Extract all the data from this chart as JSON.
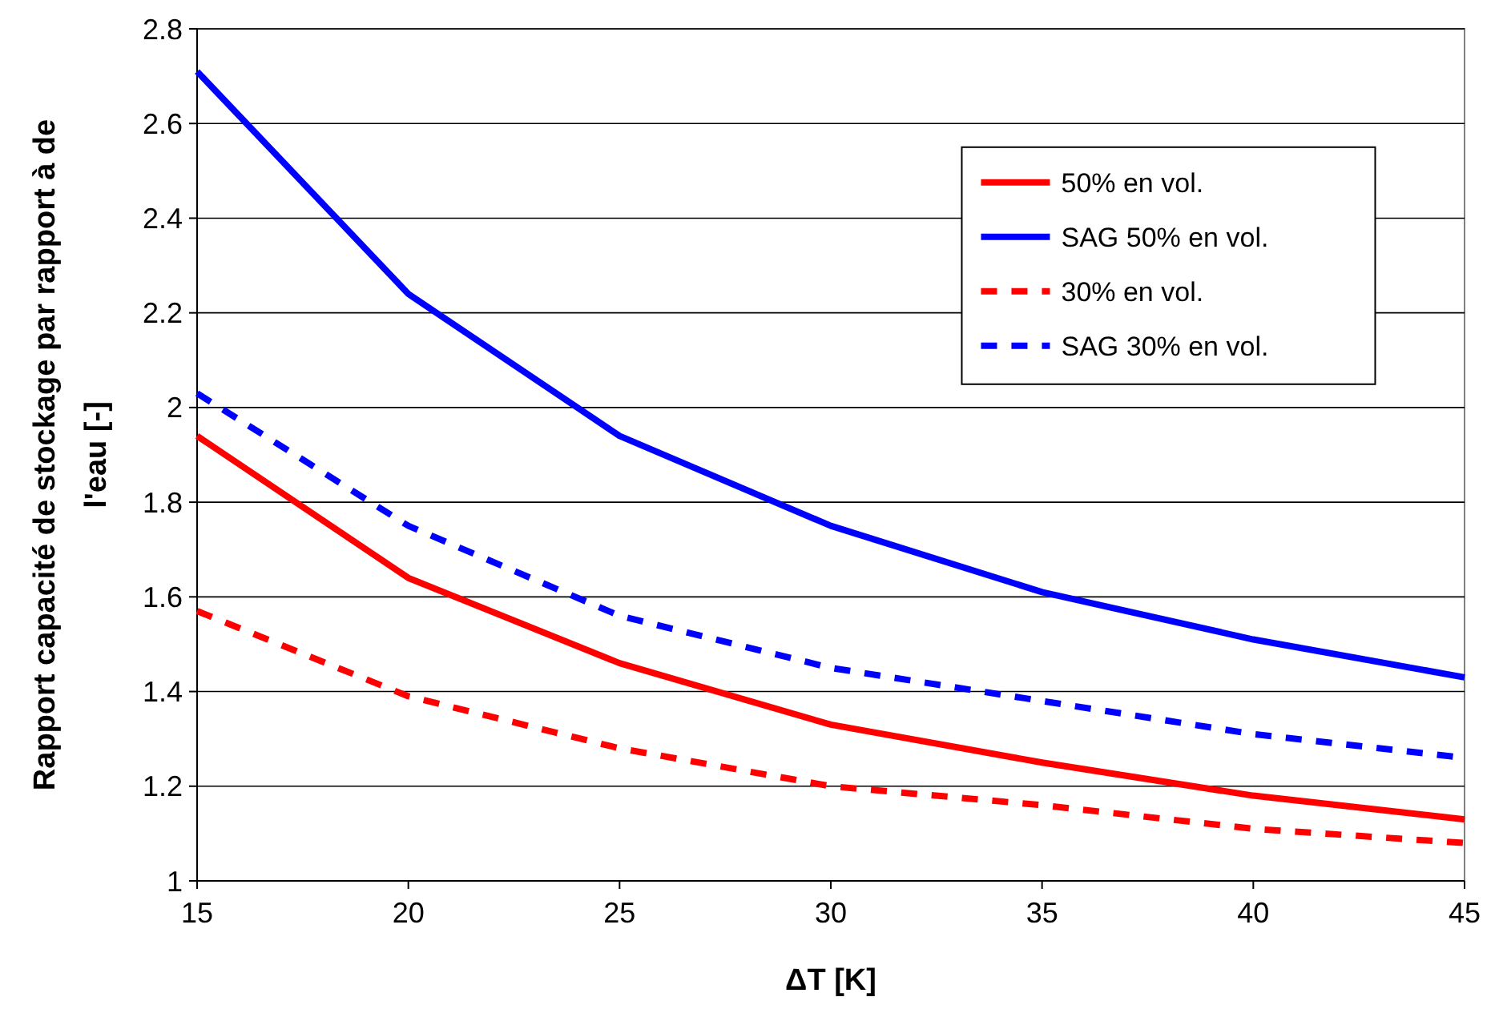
{
  "chart_data": {
    "type": "line",
    "xlabel": "ΔT [K]",
    "ylabel": "Rapport capacité de stockage par rapport à de l'eau [-]",
    "x": [
      15,
      20,
      25,
      30,
      35,
      40,
      45
    ],
    "series": [
      {
        "name": "50% en vol.",
        "color": "#ff0000",
        "line_style": "solid",
        "values": [
          1.94,
          1.64,
          1.46,
          1.33,
          1.25,
          1.18,
          1.13
        ]
      },
      {
        "name": "SAG 50% en vol.",
        "color": "#0000ff",
        "line_style": "solid",
        "values": [
          2.71,
          2.24,
          1.94,
          1.75,
          1.61,
          1.51,
          1.43
        ]
      },
      {
        "name": "30% en vol.",
        "color": "#ff0000",
        "line_style": "dashed",
        "values": [
          1.57,
          1.39,
          1.28,
          1.2,
          1.16,
          1.11,
          1.08
        ]
      },
      {
        "name": "SAG 30% en vol.",
        "color": "#0000ff",
        "line_style": "dashed",
        "values": [
          2.03,
          1.75,
          1.56,
          1.45,
          1.38,
          1.31,
          1.26
        ]
      }
    ],
    "xlim": [
      15,
      45
    ],
    "xticks": [
      15,
      20,
      25,
      30,
      35,
      40,
      45
    ],
    "ylim": [
      1,
      2.8
    ],
    "yticks": [
      1,
      {
        "value": 1.2,
        "label": "1.2"
      },
      {
        "value": 1.4,
        "label": "1.4"
      },
      {
        "value": 1.6,
        "label": "1.6"
      },
      {
        "value": 1.8,
        "label": "1.8"
      },
      2,
      {
        "value": 2.2,
        "label": "2.2"
      },
      {
        "value": 2.4,
        "label": "2.4"
      },
      {
        "value": 2.6,
        "label": "2.6"
      },
      {
        "value": 2.8,
        "label": "2.8"
      }
    ],
    "grid": "y",
    "legend": "top right"
  }
}
